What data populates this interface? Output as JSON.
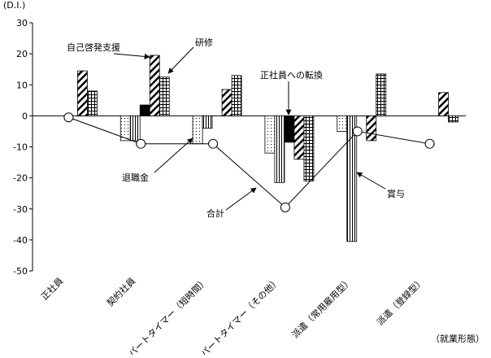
{
  "chart_data": {
    "type": "bar",
    "y_label": "(D.I.)",
    "x_label": "（就業形態）",
    "categories": [
      "正社員",
      "契約社員",
      "パートタイマー（短時間）",
      "パートタイマー（その他）",
      "派遣（常用雇用型）",
      "派遣（登録型）"
    ],
    "ylim": [
      -50,
      30
    ],
    "yticks": [
      30,
      20,
      10,
      0,
      -10,
      -20,
      -30,
      -40,
      -50
    ],
    "series": [
      {
        "name": "退職金",
        "pattern": "dots",
        "values": [
          0,
          -8,
          -9,
          -12,
          -5,
          0
        ]
      },
      {
        "name": "賞与",
        "pattern": "vlines",
        "values": [
          0,
          -8,
          -4,
          -21.5,
          -40.5,
          0
        ]
      },
      {
        "name": "正社員への転換",
        "pattern": "solid",
        "values": [
          0,
          3.5,
          0,
          -8.5,
          0,
          0
        ]
      },
      {
        "name": "自己啓発支援",
        "pattern": "diag",
        "values": [
          14.5,
          19.5,
          8.5,
          -14,
          -8,
          7.5
        ]
      },
      {
        "name": "研修",
        "pattern": "grid",
        "values": [
          8,
          12.5,
          13,
          -21,
          13.5,
          -2
        ]
      },
      {
        "name": "合計",
        "type": "line",
        "values": [
          -0.5,
          -9,
          -9,
          -29.5,
          -5,
          -9
        ]
      }
    ]
  }
}
